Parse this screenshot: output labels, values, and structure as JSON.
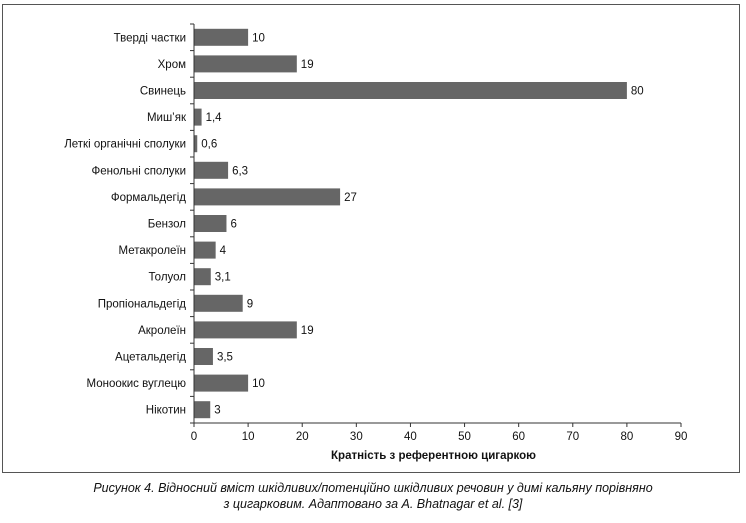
{
  "chart_data": {
    "type": "bar",
    "orientation": "horizontal",
    "categories": [
      "Тверді частки",
      "Хром",
      "Свинець",
      "Миш’як",
      "Леткі органічні сполуки",
      "Фенольні сполуки",
      "Формальдегід",
      "Бензол",
      "Метакролеїн",
      "Толуол",
      "Пропіональдегід",
      "Акролеїн",
      "Ацетальдегід",
      "Моноокис вуглецю",
      "Нікотин"
    ],
    "values": [
      10,
      19,
      80,
      1.4,
      0.6,
      6.3,
      27,
      6,
      4,
      3.1,
      9,
      19,
      3.5,
      10,
      3
    ],
    "value_labels": [
      "10",
      "19",
      "80",
      "1,4",
      "0,6",
      "6,3",
      "27",
      "6",
      "4",
      "3,1",
      "9",
      "19",
      "3,5",
      "10",
      "3"
    ],
    "xlabel": "Кратність з референтною цигаркою",
    "xlim": [
      0,
      90
    ],
    "xticks": [
      "0",
      "10",
      "20",
      "30",
      "40",
      "50",
      "60",
      "70",
      "80",
      "90"
    ],
    "grid": false,
    "bar_color": "#666666"
  },
  "caption": {
    "line1": "Рисунок 4. Відносний вміст шкідливих/потенційно шкідливих речовин у димі кальяну порівняно",
    "line2": "з цигарковим. Адаптовано за A. Bhatnagar et al. [3]"
  }
}
